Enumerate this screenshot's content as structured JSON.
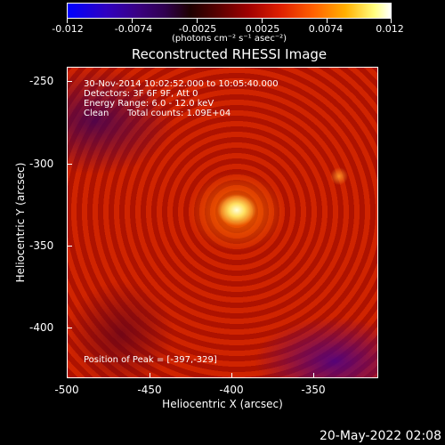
{
  "colorbar": {
    "tick_labels": [
      "-0.012",
      "-0.0074",
      "-0.0025",
      "0.0025",
      "0.0074",
      "0.012"
    ],
    "units": "(photons cm⁻² s⁻¹ asec⁻²)",
    "colors": [
      "#0000ff",
      "#300050",
      "#a00000",
      "#ff6000",
      "#ffff80",
      "#ffffff"
    ]
  },
  "title": "Reconstructed RHESSI Image",
  "info": {
    "line1": "30-Nov-2014 10:02:52.000 to 10:05:40.000",
    "line2": "Detectors: 3F 6F 9F, Att 0",
    "line3": "Energy Range: 6.0 - 12.0 keV",
    "line4_a": "Clean",
    "line4_b": "Total counts: 1.09E+04",
    "peak": "Position of Peak = [-397,-329]"
  },
  "axes": {
    "xlabel": "Heliocentric X (arcsec)",
    "ylabel": "Heliocentric Y (arcsec)",
    "x_ticks": [
      "-500",
      "-450",
      "-400",
      "-350"
    ],
    "y_ticks": [
      "-250",
      "-300",
      "-350",
      "-400"
    ],
    "x_range": [
      -500,
      -332
    ],
    "y_range": [
      -432,
      -242
    ]
  },
  "timestamp": "20-May-2022 02:08"
}
